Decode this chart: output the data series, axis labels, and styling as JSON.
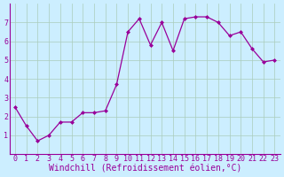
{
  "x": [
    0,
    1,
    2,
    3,
    4,
    5,
    6,
    7,
    8,
    9,
    10,
    11,
    12,
    13,
    14,
    15,
    16,
    17,
    18,
    19,
    20,
    21,
    22,
    23
  ],
  "y": [
    2.5,
    1.5,
    0.7,
    1.0,
    1.7,
    1.7,
    2.2,
    2.2,
    2.3,
    3.7,
    6.5,
    7.2,
    5.8,
    7.0,
    5.5,
    7.2,
    7.3,
    7.3,
    7.0,
    6.3,
    6.5,
    5.6,
    4.9,
    5.0
  ],
  "line_color": "#990099",
  "marker": "D",
  "marker_size": 2.0,
  "bg_color": "#cceeff",
  "grid_color": "#aaccbb",
  "xlabel": "Windchill (Refroidissement éolien,°C)",
  "xlabel_fontsize": 7.0,
  "xlabel_color": "#990099",
  "xlim": [
    -0.5,
    23.5
  ],
  "ylim": [
    0,
    8
  ],
  "yticks": [
    1,
    2,
    3,
    4,
    5,
    6,
    7
  ],
  "xticks": [
    0,
    1,
    2,
    3,
    4,
    5,
    6,
    7,
    8,
    9,
    10,
    11,
    12,
    13,
    14,
    15,
    16,
    17,
    18,
    19,
    20,
    21,
    22,
    23
  ],
  "tick_fontsize": 6.0,
  "tick_color": "#990099",
  "spine_color": "#990099",
  "fig_bg_color": "#cceeff"
}
